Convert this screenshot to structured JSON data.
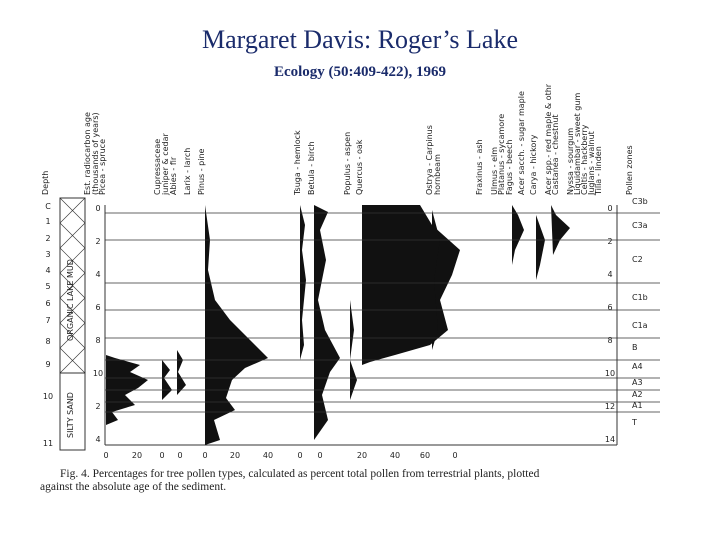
{
  "header": {
    "title": "Margaret Davis: Roger’s Lake",
    "subtitle": "Ecology (50:409-422),  1969"
  },
  "diagram": {
    "columns": [
      [
        "Depth"
      ],
      [
        "Est. radiocarbon age",
        "(thousands of years)"
      ],
      [
        "Picea - spruce"
      ],
      [
        "Cupressaceae",
        "juniper & cedar"
      ],
      [
        "Abies - fir"
      ],
      [
        "Larix - larch"
      ],
      [
        "Pinus - pine"
      ],
      [
        "Tsuga - hemlock"
      ],
      [
        "Betula - birch"
      ],
      [
        "Populus - aspen"
      ],
      [
        "Quercus - oak"
      ],
      [
        "Ostrya - Carpinus",
        "hornbeam"
      ],
      [
        "Fraxinus - ash"
      ],
      [
        "Ulmus - elm"
      ],
      [
        "Platanus - sycamore"
      ],
      [
        "Fagus - beech"
      ],
      [
        "Acer sacch. - sugar maple"
      ],
      [
        "Carya - hickory"
      ],
      [
        "Acer spp.- red maple & othr"
      ],
      [
        "Castanea - chestnut"
      ],
      [
        "Nyssa - sourgum"
      ],
      [
        "Liquidambar - sweet gum"
      ],
      [
        "Celtis - hackberry"
      ],
      [
        "Juglans - walnut"
      ],
      [
        "Tilia - linden"
      ],
      [
        "Pollen zones"
      ]
    ],
    "depth_labels": [
      "C",
      "1",
      "2",
      "3",
      "4",
      "5",
      "6",
      "7",
      "8",
      "9",
      "10",
      "11"
    ],
    "sediments": [
      "ORGANIC LAKE MUD",
      "SILTY SAND"
    ],
    "age_labels": [
      "0",
      "2",
      "4",
      "6",
      "8",
      "10",
      "2",
      "4"
    ],
    "right_age_labels": [
      "0",
      "2",
      "4",
      "6",
      "8",
      "10",
      "12",
      "14"
    ],
    "zones": [
      "C3b",
      "C3a",
      "C2",
      "C1b",
      "C1a",
      "B",
      "A4",
      "A3",
      "A2",
      "A1",
      "T"
    ],
    "x_labels": [
      "0",
      "20",
      "0",
      "0",
      "0",
      "20",
      "40",
      "0",
      "0",
      "20",
      "40",
      "60",
      "0"
    ]
  },
  "caption": [
    "Fig. 4.   Percentages for tree pollen types, calculated as percent total pollen from terrestrial plants, plotted",
    "against the absolute age of the sediment."
  ]
}
